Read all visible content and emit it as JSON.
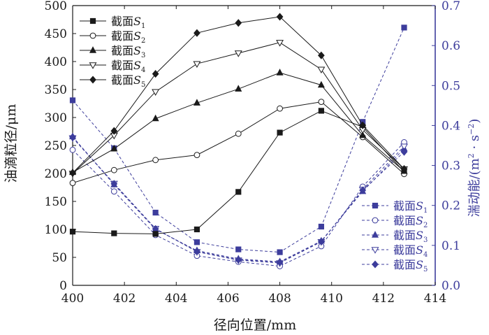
{
  "chart_data": {
    "type": "line",
    "title": "",
    "xlabel": "径向位置/mm",
    "ylabel_left": "油滴粒径/μm",
    "ylabel_right_main": "湍动能/(m",
    "ylabel_right_sup1": "2",
    "ylabel_right_mid": " · s",
    "ylabel_right_sup2": "−2",
    "ylabel_right_end": ")",
    "xlim": [
      400,
      414
    ],
    "ylim_left": [
      0,
      500
    ],
    "ylim_right": [
      0,
      0.7
    ],
    "x_ticks": [
      400,
      402,
      404,
      406,
      408,
      410,
      412,
      414
    ],
    "y_left_ticks": [
      0,
      50,
      100,
      150,
      200,
      250,
      300,
      350,
      400,
      450,
      500
    ],
    "y_right_ticks": [
      0.0,
      0.1,
      0.2,
      0.3,
      0.4,
      0.5,
      0.6,
      0.7
    ],
    "x_tick_labels": [
      "400",
      "402",
      "404",
      "406",
      "408",
      "410",
      "412",
      "414"
    ],
    "y_left_tick_labels": [
      "0",
      "50",
      "100",
      "150",
      "200",
      "250",
      "300",
      "350",
      "400",
      "450",
      "500"
    ],
    "y_right_tick_labels": [
      "0.0",
      "0.1",
      "0.2",
      "0.3",
      "0.4",
      "0.5",
      "0.6",
      "0.7"
    ],
    "x": [
      400,
      401.6,
      403.2,
      404.8,
      406.4,
      408,
      409.6,
      411.2,
      412.8
    ],
    "series_left": [
      {
        "name": "截面S1",
        "label": "截面",
        "sub": "1",
        "marker": "square-filled",
        "values": [
          96,
          93,
          92,
          100,
          167,
          273,
          312,
          283,
          203
        ]
      },
      {
        "name": "截面S2",
        "label": "截面",
        "sub": "2",
        "marker": "circle-open",
        "values": [
          183,
          206,
          224,
          233,
          271,
          316,
          328,
          265,
          199
        ]
      },
      {
        "name": "截面S3",
        "label": "截面",
        "sub": "3",
        "marker": "triangle-filled",
        "values": [
          202,
          244,
          298,
          326,
          351,
          380,
          358,
          268,
          204
        ]
      },
      {
        "name": "截面S4",
        "label": "截面",
        "sub": "4",
        "marker": "triangle-down-open",
        "values": [
          200,
          268,
          346,
          396,
          415,
          434,
          386,
          278,
          208
        ]
      },
      {
        "name": "截面S5",
        "label": "截面",
        "sub": "5",
        "marker": "diamond-filled",
        "values": [
          201,
          276,
          378,
          451,
          469,
          480,
          411,
          286,
          208
        ]
      }
    ],
    "series_right": [
      {
        "name": "截面S1",
        "label": "截面",
        "sub": "1",
        "marker": "square-filled",
        "values": [
          0.463,
          0.343,
          0.182,
          0.108,
          0.09,
          0.083,
          0.147,
          0.409,
          0.645
        ]
      },
      {
        "name": "截面S2",
        "label": "截面",
        "sub": "2",
        "marker": "circle-open",
        "values": [
          0.339,
          0.235,
          0.126,
          0.074,
          0.059,
          0.048,
          0.098,
          0.247,
          0.358
        ]
      },
      {
        "name": "截面S3",
        "label": "截面",
        "sub": "3",
        "marker": "triangle-filled",
        "values": [
          0.372,
          0.252,
          0.14,
          0.087,
          0.066,
          0.059,
          0.111,
          0.235,
          0.342
        ]
      },
      {
        "name": "截面S4",
        "label": "截面",
        "sub": "4",
        "marker": "triangle-down-open",
        "values": [
          0.369,
          0.255,
          0.142,
          0.084,
          0.063,
          0.056,
          0.109,
          0.24,
          0.348
        ]
      },
      {
        "name": "截面S5",
        "label": "截面",
        "sub": "5",
        "marker": "diamond-filled",
        "values": [
          0.371,
          0.254,
          0.141,
          0.085,
          0.064,
          0.058,
          0.11,
          0.238,
          0.334
        ]
      }
    ],
    "legend_left_position": "top-left",
    "legend_right_position": "bottom-right",
    "colors": {
      "left_series": "#1a1a1a",
      "right_series": "#3d3d9c",
      "right_axis": "#3d3d9c",
      "axis": "#1a1a1a"
    }
  }
}
